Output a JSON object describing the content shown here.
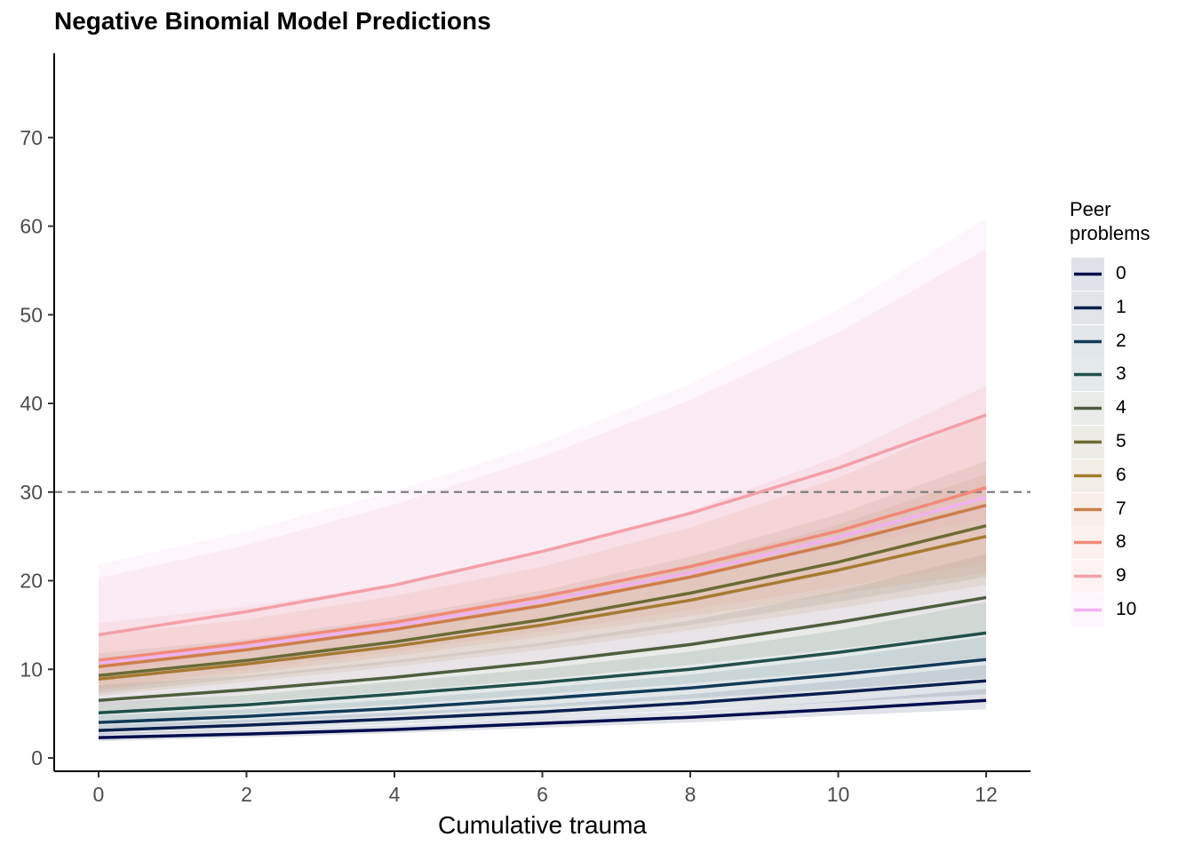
{
  "chart_data": {
    "type": "line",
    "title": "Negative Binomial Model Predictions",
    "xlabel": "Cumulative trauma",
    "ylabel": "",
    "x": [
      0,
      2,
      4,
      6,
      8,
      10,
      12
    ],
    "xticks": [
      0,
      2,
      4,
      6,
      8,
      10,
      12
    ],
    "yticks": [
      0,
      10,
      20,
      30,
      40,
      50,
      60,
      70
    ],
    "xlim": [
      -0.6,
      12.6
    ],
    "ylim": [
      -1.5,
      79.5
    ],
    "reference_line": {
      "y": 30,
      "style": "dashed",
      "color": "#7f7f7f"
    },
    "legend": {
      "title": "Peer\nproblems",
      "position": "right"
    },
    "ribbon_opacity": 0.12,
    "series": [
      {
        "name": "0",
        "color": "#000d4d",
        "values": [
          2.3,
          2.7,
          3.2,
          3.9,
          4.6,
          5.5,
          6.5
        ],
        "lower": [
          1.9,
          2.3,
          2.8,
          3.4,
          4.0,
          4.8,
          5.5
        ],
        "upper": [
          2.8,
          3.2,
          3.7,
          4.5,
          5.3,
          6.4,
          7.8
        ]
      },
      {
        "name": "1",
        "color": "#0a1f4d",
        "values": [
          3.1,
          3.7,
          4.4,
          5.2,
          6.2,
          7.4,
          8.7
        ],
        "lower": [
          2.6,
          3.2,
          3.8,
          4.5,
          5.4,
          6.3,
          7.2
        ],
        "upper": [
          3.7,
          4.3,
          5.1,
          6.0,
          7.2,
          8.7,
          10.5
        ]
      },
      {
        "name": "2",
        "color": "#123a57",
        "values": [
          4.0,
          4.7,
          5.6,
          6.7,
          7.9,
          9.4,
          11.1
        ],
        "lower": [
          3.3,
          4.0,
          4.8,
          5.7,
          6.7,
          7.8,
          9.0
        ],
        "upper": [
          4.8,
          5.5,
          6.6,
          7.9,
          9.4,
          11.3,
          13.7
        ]
      },
      {
        "name": "3",
        "color": "#224f4a",
        "values": [
          5.1,
          6.0,
          7.2,
          8.5,
          10.0,
          11.9,
          14.1
        ],
        "lower": [
          4.1,
          5.0,
          6.0,
          7.2,
          8.4,
          9.8,
          11.3
        ],
        "upper": [
          6.3,
          7.1,
          8.6,
          10.1,
          12.0,
          14.4,
          17.6
        ]
      },
      {
        "name": "4",
        "color": "#4e5e3f",
        "values": [
          6.5,
          7.7,
          9.1,
          10.8,
          12.8,
          15.3,
          18.1
        ],
        "lower": [
          5.1,
          6.3,
          7.5,
          8.9,
          10.5,
          12.3,
          14.2
        ],
        "upper": [
          8.2,
          9.3,
          11.0,
          13.0,
          15.5,
          18.8,
          23.0
        ]
      },
      {
        "name": "5",
        "color": "#6b6b35",
        "values": [
          9.3,
          11.0,
          13.1,
          15.6,
          18.6,
          22.1,
          26.2
        ],
        "lower": [
          7.3,
          9.0,
          10.7,
          12.7,
          15.0,
          17.6,
          20.4
        ],
        "upper": [
          11.8,
          13.4,
          15.9,
          18.9,
          22.7,
          27.5,
          33.5
        ]
      },
      {
        "name": "6",
        "color": "#a57a33",
        "values": [
          8.9,
          10.6,
          12.6,
          15.0,
          17.8,
          21.2,
          25.0
        ],
        "lower": [
          7.0,
          8.6,
          10.3,
          12.2,
          14.4,
          16.9,
          19.5
        ],
        "upper": [
          11.3,
          12.8,
          15.2,
          18.1,
          21.8,
          26.3,
          32.0
        ]
      },
      {
        "name": "7",
        "color": "#cc7e4c",
        "values": [
          10.3,
          12.2,
          14.5,
          17.2,
          20.4,
          24.2,
          28.5
        ],
        "lower": [
          7.6,
          9.5,
          11.5,
          13.7,
          16.0,
          18.5,
          20.9
        ],
        "upper": [
          13.9,
          15.6,
          18.3,
          21.6,
          26.0,
          31.6,
          38.8
        ]
      },
      {
        "name": "8",
        "color": "#f08a78",
        "values": [
          11.0,
          13.0,
          15.3,
          18.2,
          21.6,
          25.6,
          30.5
        ],
        "lower": [
          7.9,
          9.9,
          12.0,
          14.3,
          16.7,
          19.3,
          22.0
        ],
        "upper": [
          15.2,
          17.1,
          19.5,
          23.1,
          27.9,
          34.0,
          42.0
        ]
      },
      {
        "name": "9",
        "color": "#f2a0aa",
        "values": [
          13.9,
          16.5,
          19.5,
          23.3,
          27.6,
          32.7,
          38.7
        ],
        "lower": [
          9.6,
          12.1,
          14.8,
          17.6,
          20.5,
          23.7,
          27.0
        ],
        "upper": [
          20.3,
          24.0,
          28.6,
          34.0,
          40.4,
          48.0,
          57.4
        ]
      },
      {
        "name": "10",
        "color": "#f0b2ee",
        "values": [
          10.7,
          12.6,
          14.9,
          17.7,
          20.9,
          24.9,
          29.4
        ],
        "lower": [
          5.8,
          7.3,
          9.0,
          10.8,
          12.8,
          15.0,
          17.4
        ],
        "upper": [
          21.8,
          25.6,
          30.1,
          35.5,
          42.2,
          50.5,
          60.9
        ]
      }
    ]
  }
}
